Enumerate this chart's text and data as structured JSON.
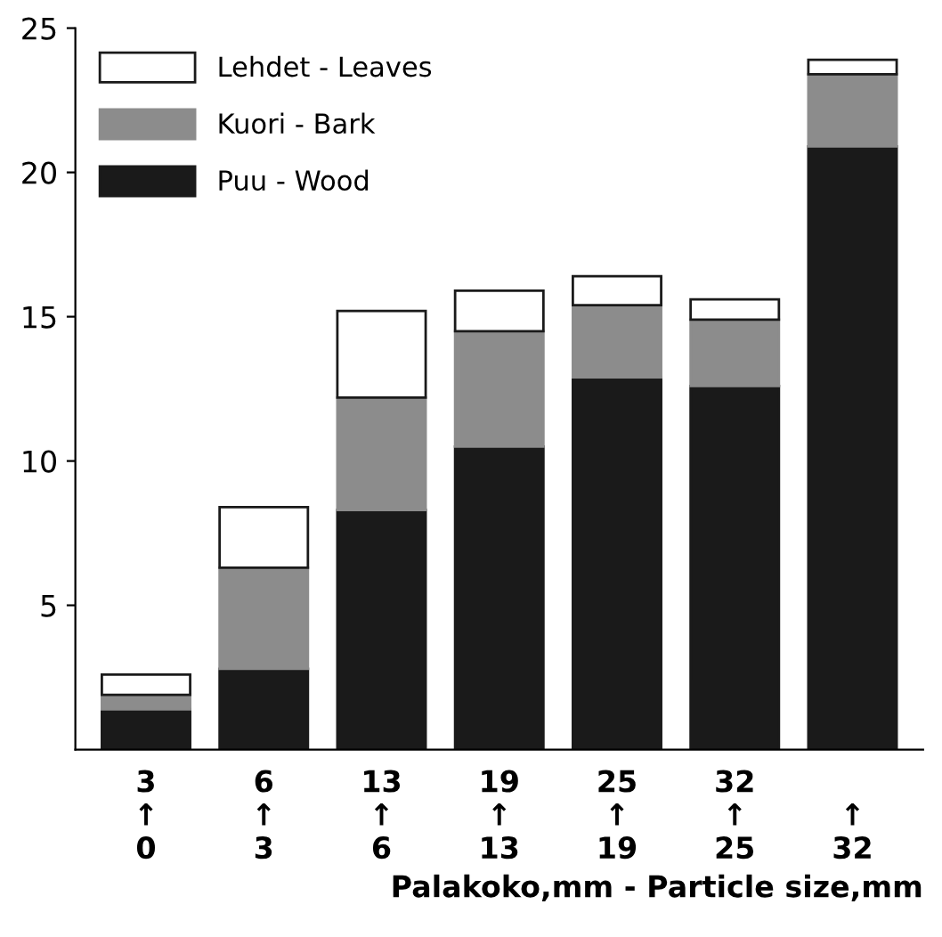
{
  "chart_data": {
    "type": "bar",
    "stacked": true,
    "categories": [
      "3\n↑\n0",
      "6\n↑\n3",
      "13\n↑\n6",
      "19\n↑\n13",
      "25\n↑\n19",
      "32\n↑\n25",
      "\n↑\n32"
    ],
    "series": [
      {
        "name": "Puu - Wood",
        "color": "#1a1a1a",
        "values": [
          1.4,
          2.8,
          8.3,
          10.5,
          12.9,
          12.6,
          20.9
        ]
      },
      {
        "name": "Kuori - Bark",
        "color": "#8c8c8c",
        "values": [
          0.5,
          3.5,
          3.9,
          4.0,
          2.5,
          2.3,
          2.5
        ]
      },
      {
        "name": "Lehdet - Leaves",
        "color": "#ffffff",
        "values": [
          0.7,
          2.1,
          3.0,
          1.4,
          1.0,
          0.7,
          0.5
        ]
      }
    ],
    "xlabel": "Palakoko,mm - Particle size,mm",
    "ylim": [
      0,
      25
    ],
    "yticks": [
      5,
      10,
      15,
      20,
      25
    ],
    "grid": false,
    "legend": "top left"
  }
}
